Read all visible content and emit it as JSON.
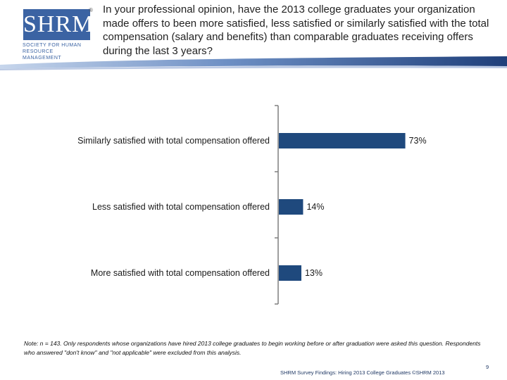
{
  "logo": {
    "wordmark": "SHRM",
    "registered": "®",
    "tagline": "SOCIETY FOR HUMAN RESOURCE MANAGEMENT"
  },
  "title": "In your professional opinion, have the 2013 college graduates your organization made offers to been more satisfied, less satisfied or similarly satisfied with the total compensation (salary and benefits) than comparable graduates receiving offers during the last 3 years?",
  "chart_data": {
    "type": "bar",
    "orientation": "horizontal",
    "categories": [
      "Similarly satisfied with total compensation offered",
      "Less satisfied with total compensation offered",
      "More satisfied with total compensation offered"
    ],
    "values": [
      73,
      14,
      13
    ],
    "value_labels": [
      "73%",
      "14%",
      "13%"
    ],
    "xlim": [
      0,
      100
    ],
    "bar_color": "#1f497d",
    "title": "",
    "xlabel": "",
    "ylabel": "",
    "grid": false
  },
  "footnote": "Note: n = 143. Only respondents whose organizations have hired 2013 college graduates to begin working before or after graduation were asked this question. Respondents who answered \"don't know\" and \"not applicable\" were excluded from this analysis.",
  "footer": "SHRM Survey Findings: Hiring 2013 College Graduates ©SHRM 2013",
  "page_number": "9"
}
